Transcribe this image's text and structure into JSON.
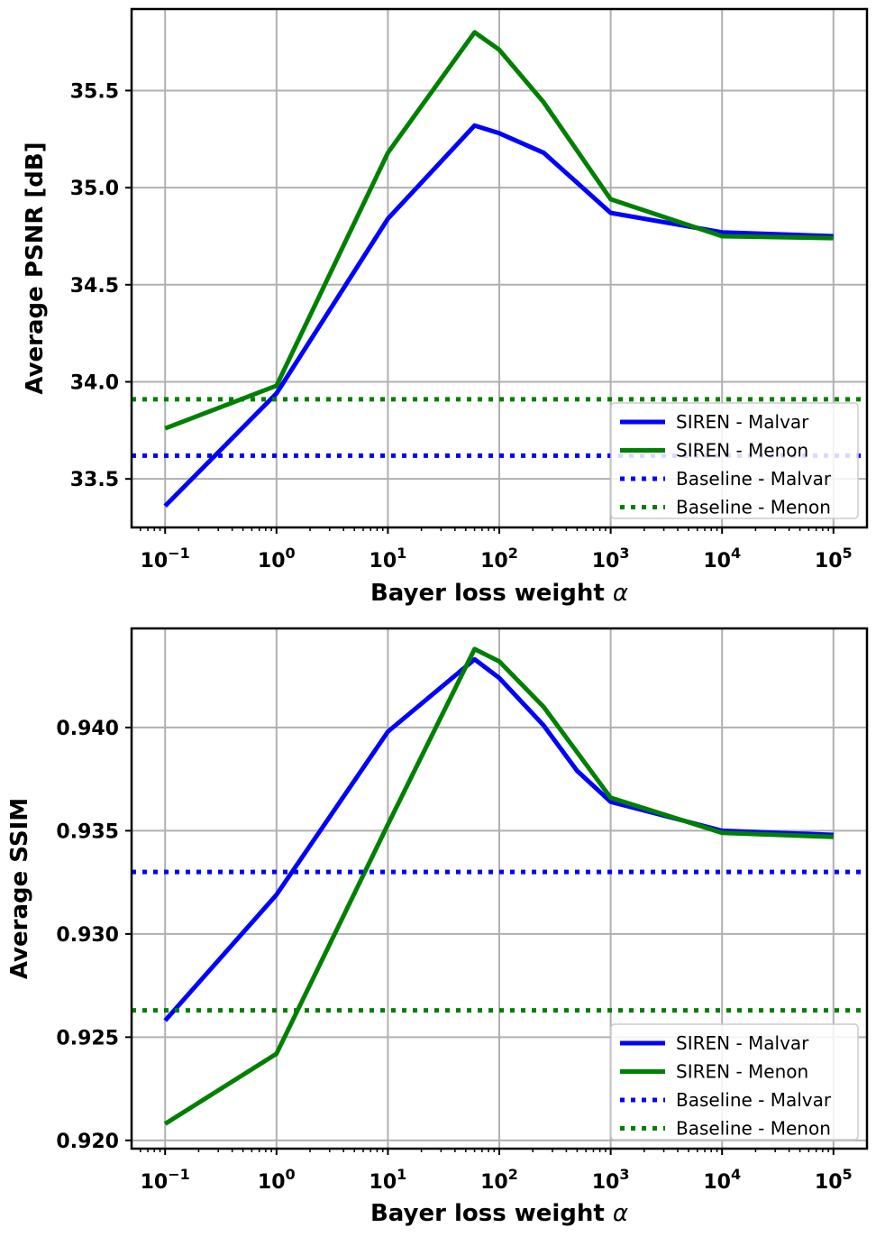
{
  "colors": {
    "malvar": "#0000ff",
    "menon": "#008000",
    "grid": "#b0b0b0",
    "axes": "#000000"
  },
  "chart_data": [
    {
      "type": "line",
      "title": "",
      "xlabel": "Bayer loss weight",
      "xlabel_symbol": "α",
      "ylabel": "Average PSNR [dB]",
      "xscale": "log",
      "xlim": [
        0.05,
        200000
      ],
      "ylim": [
        33.25,
        35.92
      ],
      "x_ticks": [
        0.1,
        1,
        10,
        100,
        1000,
        10000,
        100000
      ],
      "x_tick_labels": [
        {
          "base": "10",
          "exp": "−1"
        },
        {
          "base": "10",
          "exp": "0"
        },
        {
          "base": "10",
          "exp": "1"
        },
        {
          "base": "10",
          "exp": "2"
        },
        {
          "base": "10",
          "exp": "3"
        },
        {
          "base": "10",
          "exp": "4"
        },
        {
          "base": "10",
          "exp": "5"
        }
      ],
      "y_ticks": [
        33.5,
        34.0,
        34.5,
        35.0,
        35.5
      ],
      "y_tick_labels": [
        "33.5",
        "34.0",
        "34.5",
        "35.0",
        "35.5"
      ],
      "grid": true,
      "legend_position": "lower-right",
      "series": [
        {
          "name": "SIREN - Malvar",
          "style": "solid",
          "color_key": "malvar",
          "x": [
            0.1,
            1,
            10,
            60,
            100,
            250,
            1000,
            10000,
            100000
          ],
          "y": [
            33.36,
            33.94,
            34.84,
            35.32,
            35.28,
            35.18,
            34.87,
            34.77,
            34.75
          ]
        },
        {
          "name": "SIREN - Menon",
          "style": "solid",
          "color_key": "menon",
          "x": [
            0.1,
            1,
            10,
            60,
            100,
            250,
            1000,
            10000,
            100000
          ],
          "y": [
            33.76,
            33.98,
            35.18,
            35.8,
            35.71,
            35.44,
            34.94,
            34.75,
            34.74
          ]
        },
        {
          "name": "Baseline - Malvar",
          "style": "dotted",
          "color_key": "malvar",
          "constant": 33.62
        },
        {
          "name": "Baseline - Menon",
          "style": "dotted",
          "color_key": "menon",
          "constant": 33.91
        }
      ]
    },
    {
      "type": "line",
      "title": "",
      "xlabel": "Bayer loss weight",
      "xlabel_symbol": "α",
      "ylabel": "Average SSIM",
      "xscale": "log",
      "xlim": [
        0.05,
        200000
      ],
      "ylim": [
        0.9196,
        0.9448
      ],
      "x_ticks": [
        0.1,
        1,
        10,
        100,
        1000,
        10000,
        100000
      ],
      "x_tick_labels": [
        {
          "base": "10",
          "exp": "−1"
        },
        {
          "base": "10",
          "exp": "0"
        },
        {
          "base": "10",
          "exp": "1"
        },
        {
          "base": "10",
          "exp": "2"
        },
        {
          "base": "10",
          "exp": "3"
        },
        {
          "base": "10",
          "exp": "4"
        },
        {
          "base": "10",
          "exp": "5"
        }
      ],
      "y_ticks": [
        0.92,
        0.925,
        0.93,
        0.935,
        0.94
      ],
      "y_tick_labels": [
        "0.920",
        "0.925",
        "0.930",
        "0.935",
        "0.940"
      ],
      "grid": true,
      "legend_position": "lower-right",
      "series": [
        {
          "name": "SIREN - Malvar",
          "style": "solid",
          "color_key": "malvar",
          "x": [
            0.1,
            1,
            10,
            60,
            100,
            250,
            500,
            1000,
            10000,
            100000
          ],
          "y": [
            0.9258,
            0.9319,
            0.9398,
            0.9433,
            0.9424,
            0.9401,
            0.9379,
            0.9364,
            0.935,
            0.9348
          ]
        },
        {
          "name": "SIREN - Menon",
          "style": "solid",
          "color_key": "menon",
          "x": [
            0.1,
            1,
            10,
            60,
            100,
            250,
            1000,
            10000,
            100000
          ],
          "y": [
            0.9208,
            0.9242,
            0.9353,
            0.9438,
            0.9432,
            0.941,
            0.9366,
            0.9349,
            0.9347
          ]
        },
        {
          "name": "Baseline - Malvar",
          "style": "dotted",
          "color_key": "malvar",
          "constant": 0.933
        },
        {
          "name": "Baseline - Menon",
          "style": "dotted",
          "color_key": "menon",
          "constant": 0.9263
        }
      ]
    }
  ]
}
